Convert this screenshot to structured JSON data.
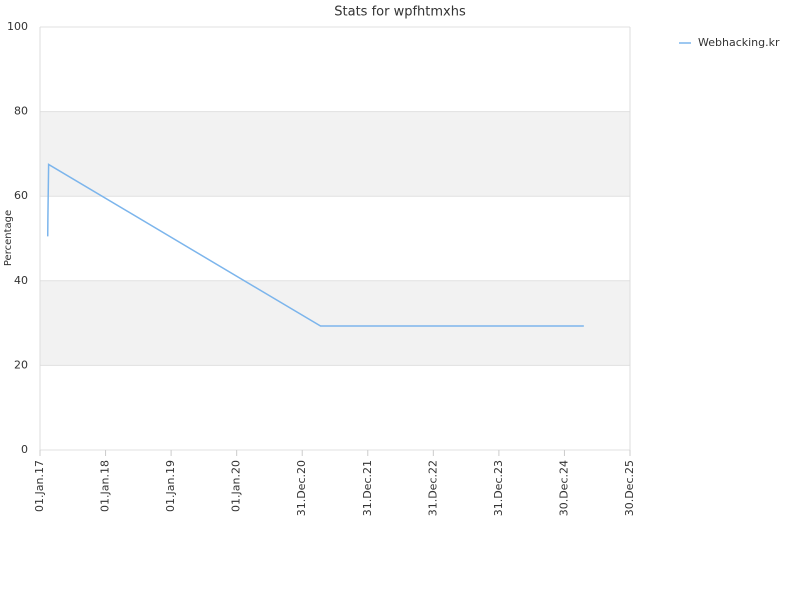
{
  "chart_data": {
    "type": "line",
    "title": "Stats for wpfhtmxhs",
    "y_label": "Percentage",
    "x": [
      "2017-02-13",
      "2017-02-14",
      "2017-02-18",
      "2021-04-12",
      "2025-04-17"
    ],
    "series": [
      {
        "name": "Webhacking.kr",
        "color": "#7cb5ec",
        "values": [
          50.5,
          55,
          67.5,
          29.3,
          29.3
        ]
      }
    ],
    "xlim": [
      "2017-01-01",
      "2025-12-30"
    ],
    "xticks": [
      {
        "value": "2017-01-01",
        "label": "01.Jan.17"
      },
      {
        "value": "2018-01-01",
        "label": "01.Jan.18"
      },
      {
        "value": "2019-01-01",
        "label": "01.Jan.19"
      },
      {
        "value": "2020-01-01",
        "label": "01.Jan.20"
      },
      {
        "value": "2020-12-31",
        "label": "31.Dec.20"
      },
      {
        "value": "2021-12-31",
        "label": "31.Dec.21"
      },
      {
        "value": "2022-12-31",
        "label": "31.Dec.22"
      },
      {
        "value": "2023-12-31",
        "label": "31.Dec.23"
      },
      {
        "value": "2024-12-30",
        "label": "30.Dec.24"
      },
      {
        "value": "2025-12-30",
        "label": "30.Dec.25"
      }
    ],
    "ylim": [
      0,
      100
    ],
    "yticks": [
      0,
      20,
      40,
      60,
      80,
      100
    ],
    "grid": true,
    "legend": "top-right"
  }
}
